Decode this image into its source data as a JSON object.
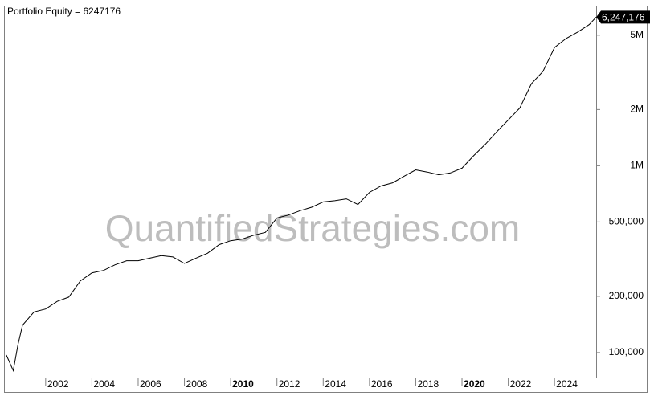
{
  "chart_data": {
    "type": "line",
    "title": "Portfolio Equity = 6247176",
    "watermark": "QuantifiedStrategies.com",
    "color": "#000000",
    "log_y": true,
    "x": [
      2000.3,
      2000.6,
      2000.8,
      2001.0,
      2001.5,
      2002.0,
      2002.5,
      2003.0,
      2003.5,
      2004.0,
      2004.5,
      2005.0,
      2005.5,
      2006.0,
      2006.5,
      2007.0,
      2007.5,
      2008.0,
      2008.5,
      2009.0,
      2009.5,
      2010.0,
      2010.5,
      2011.0,
      2011.5,
      2012.0,
      2012.5,
      2013.0,
      2013.5,
      2014.0,
      2014.5,
      2015.0,
      2015.5,
      2016.0,
      2016.5,
      2017.0,
      2017.5,
      2018.0,
      2018.5,
      2019.0,
      2019.5,
      2020.0,
      2020.5,
      2021.0,
      2021.5,
      2022.0,
      2022.5,
      2023.0,
      2023.5,
      2024.0,
      2024.5,
      2025.0,
      2025.5,
      2025.8
    ],
    "values": [
      97000,
      80000,
      110000,
      140000,
      165000,
      171000,
      188000,
      198000,
      242000,
      267000,
      275000,
      295000,
      310000,
      310000,
      320000,
      330000,
      325000,
      300000,
      320000,
      340000,
      378000,
      397000,
      405000,
      425000,
      440000,
      525000,
      545000,
      575000,
      600000,
      640000,
      650000,
      665000,
      620000,
      720000,
      780000,
      810000,
      880000,
      950000,
      925000,
      895000,
      915000,
      970000,
      1130000,
      1300000,
      1520000,
      1760000,
      2040000,
      2750000,
      3200000,
      4300000,
      4800000,
      5200000,
      5700000,
      6247176
    ],
    "current_value": {
      "value": 6247176,
      "label": "6,247,176"
    },
    "xlim": [
      2000.2,
      2025.8
    ],
    "xticks": [
      2002,
      2004,
      2006,
      2008,
      2010,
      2012,
      2014,
      2016,
      2018,
      2020,
      2022,
      2024
    ],
    "emphasized_xticks": [
      2010,
      2020
    ],
    "ylim": [
      73500,
      7200000
    ],
    "yticks": [
      {
        "value": 100000,
        "label": "100,000"
      },
      {
        "value": 200000,
        "label": "200,000"
      },
      {
        "value": 500000,
        "label": "500,000"
      },
      {
        "value": 1000000,
        "label": "1M"
      },
      {
        "value": 2000000,
        "label": "2M"
      },
      {
        "value": 5000000,
        "label": "5M"
      }
    ]
  }
}
